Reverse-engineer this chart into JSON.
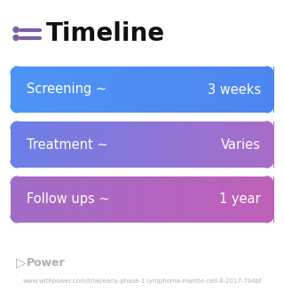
{
  "title": "Timeline",
  "title_fontsize": 20,
  "title_color": "#111111",
  "icon_color": "#7b5ea7",
  "background_color": "#ffffff",
  "rows": [
    {
      "label": "Screening ~",
      "value": "3 weeks",
      "color_left": "#4d94f5",
      "color_right": "#4d85f0"
    },
    {
      "label": "Treatment ~",
      "value": "Varies",
      "color_left": "#6b7fe8",
      "color_right": "#a96cc8"
    },
    {
      "label": "Follow ups ~",
      "value": "1 year",
      "color_left": "#a06cc8",
      "color_right": "#c060b8"
    }
  ],
  "row_label_fontsize": 10.5,
  "row_value_fontsize": 10.5,
  "watermark_text": "Power",
  "watermark_color": "#b0b0b0",
  "url_text": "www.withpower.com/trial/early-phase-1-lymphoma-mantle-cell-8-2017-7b4bf",
  "url_fontsize": 5.0,
  "url_color": "#b0b0b0"
}
